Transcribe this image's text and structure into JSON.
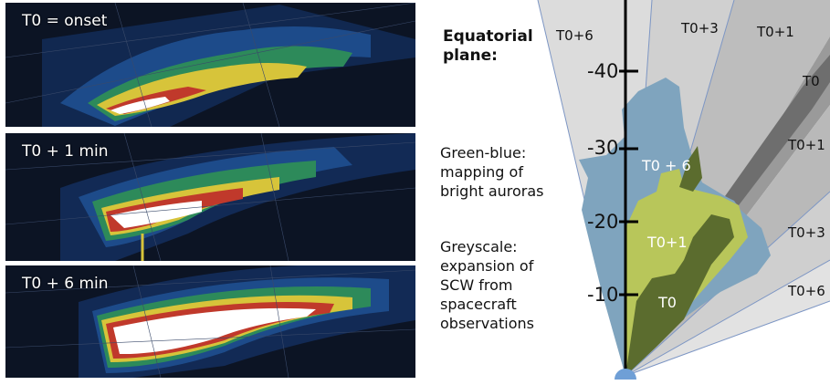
{
  "left_panels": [
    {
      "label": "T0 = onset"
    },
    {
      "label": "T0 + 1 min"
    },
    {
      "label": "T0 + 6 min"
    }
  ],
  "diagram": {
    "title": "Equatorial plane:",
    "green_blue_text": "Green-blue: mapping of bright auroras",
    "greyscale_text": "Greyscale: expansion of SCW from spacecraft observations",
    "axis_ticks": [
      "-40",
      "-30",
      "-20",
      "-10"
    ],
    "wedge_labels": {
      "top_left": "T0+6",
      "top_mid": "T0+3",
      "top_right": "T0+1",
      "right_t0": "T0",
      "right_t0plus1": "T0+1",
      "right_t0plus3": "T0+3",
      "right_t0plus6": "T0+6"
    },
    "region_labels": {
      "t0_plus_6": "T0 + 6",
      "t0_plus_1": "T0+1",
      "t0": "T0"
    }
  },
  "colors": {
    "background": "#000000",
    "light_blue": "#7fa4be",
    "light_green": "#b8c65a",
    "dark_green": "#5b6c2e",
    "grey_light": "#dcdcdc",
    "grey_mid": "#bdbdbd",
    "grey_dark": "#8c8c8c",
    "grey_darkest": "#6e6e6e",
    "axis_origin_blue": "#6f9fd6"
  }
}
